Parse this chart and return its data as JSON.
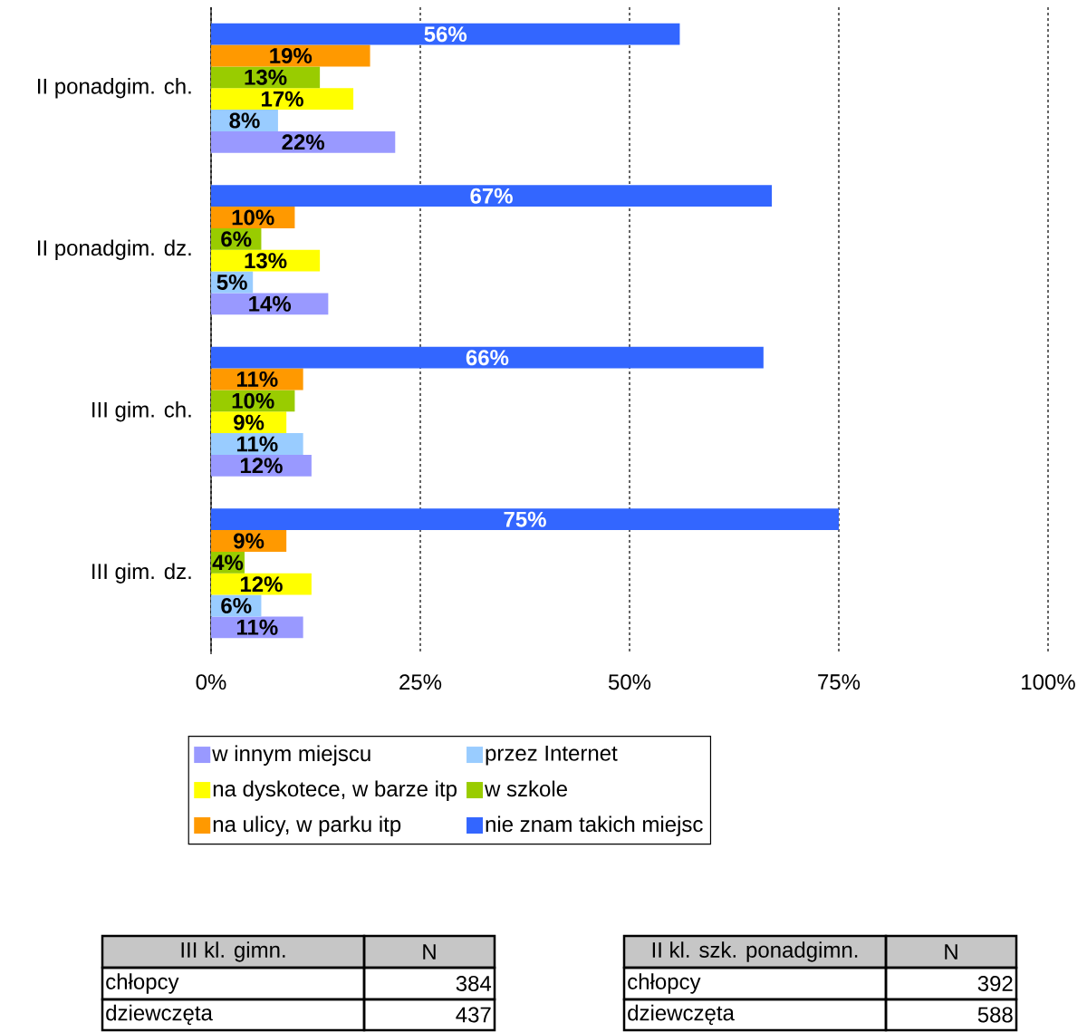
{
  "chart_data": {
    "type": "bar",
    "orientation": "horizontal",
    "categories": [
      "II ponadgim. ch.",
      "II ponadgim. dz.",
      "III gim. ch.",
      "III gim. dz."
    ],
    "series": [
      {
        "name": "w innym miejscu",
        "color": "#9999ff",
        "values": [
          22,
          14,
          12,
          11
        ],
        "value_labels": [
          "22%",
          "14%",
          "12%",
          "11%"
        ]
      },
      {
        "name": "przez Internet",
        "color": "#99ccff",
        "values": [
          8,
          5,
          11,
          6
        ],
        "value_labels": [
          "8%",
          "5%",
          "11%",
          "6%"
        ]
      },
      {
        "name": "na dyskotece, w barze itp",
        "color": "#ffff00",
        "values": [
          17,
          13,
          9,
          12
        ],
        "value_labels": [
          "17%",
          "13%",
          "9%",
          "12%"
        ]
      },
      {
        "name": "w szkole",
        "color": "#99cc00",
        "values": [
          13,
          6,
          10,
          4
        ],
        "value_labels": [
          "13%",
          "6%",
          "10%",
          "4%"
        ]
      },
      {
        "name": "na ulicy, w parku itp",
        "color": "#ff9900",
        "values": [
          19,
          10,
          11,
          9
        ],
        "value_labels": [
          "19%",
          "10%",
          "11%",
          "9%"
        ]
      },
      {
        "name": "nie znam takich miejsc",
        "color": "#3366ff",
        "values": [
          56,
          67,
          66,
          75
        ],
        "value_labels": [
          "56%",
          "67%",
          "66%",
          "75%"
        ]
      }
    ],
    "xlim": [
      0,
      100
    ],
    "xticks": [
      {
        "value": 0,
        "label": "0%"
      },
      {
        "value": 25,
        "label": "25%"
      },
      {
        "value": 50,
        "label": "50%"
      },
      {
        "value": 75,
        "label": "75%"
      },
      {
        "value": 100,
        "label": "100%"
      }
    ],
    "grid": "x",
    "legend": "bottom",
    "annotations": [
      "III kl. gimn.",
      "N",
      "chłopcy",
      "384",
      "dziewczęta",
      "437",
      "II kl. szk. ponadgimn.",
      "N",
      "chłopcy",
      "392",
      "dziewczęta",
      "588"
    ]
  }
}
